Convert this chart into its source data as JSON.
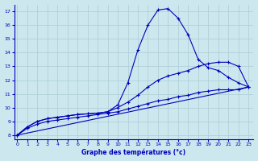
{
  "xlabel": "Graphe des températures (°c)",
  "bg_color": "#cce8ee",
  "grid_color": "#b0d0d8",
  "line_color": "#0000bb",
  "x_ticks": [
    0,
    1,
    2,
    3,
    4,
    5,
    6,
    7,
    8,
    9,
    10,
    11,
    12,
    13,
    14,
    15,
    16,
    17,
    18,
    19,
    20,
    21,
    22,
    23
  ],
  "y_ticks": [
    8,
    9,
    10,
    11,
    12,
    13,
    14,
    15,
    16,
    17
  ],
  "ylim": [
    7.7,
    17.5
  ],
  "xlim": [
    -0.3,
    23.5
  ],
  "line1_x": [
    0,
    1,
    2,
    3,
    4,
    5,
    6,
    7,
    8,
    9,
    10,
    11,
    12,
    13,
    14,
    15,
    16,
    17,
    18,
    19,
    20,
    21,
    22,
    23
  ],
  "line1_y": [
    8.0,
    8.6,
    9.0,
    9.2,
    9.3,
    9.4,
    9.5,
    9.55,
    9.6,
    9.7,
    10.2,
    11.8,
    14.2,
    16.0,
    17.1,
    17.2,
    16.5,
    15.3,
    13.5,
    12.9,
    12.7,
    12.2,
    11.8,
    11.5
  ],
  "line2_x": [
    0,
    1,
    2,
    3,
    4,
    5,
    6,
    7,
    8,
    9,
    10,
    11,
    12,
    13,
    14,
    15,
    16,
    17,
    18,
    19,
    20,
    21,
    22,
    23
  ],
  "line2_y": [
    8.0,
    8.6,
    9.0,
    9.2,
    9.3,
    9.4,
    9.5,
    9.55,
    9.6,
    9.7,
    10.0,
    10.4,
    10.9,
    11.5,
    12.0,
    12.3,
    12.5,
    12.7,
    13.0,
    13.2,
    13.3,
    13.3,
    13.0,
    11.5
  ],
  "line3_x": [
    0,
    1,
    2,
    3,
    4,
    5,
    6,
    7,
    8,
    9,
    10,
    11,
    12,
    13,
    14,
    15,
    16,
    17,
    18,
    19,
    20,
    21,
    22,
    23
  ],
  "line3_y": [
    8.0,
    8.5,
    8.8,
    9.0,
    9.1,
    9.2,
    9.3,
    9.4,
    9.5,
    9.6,
    9.7,
    9.9,
    10.1,
    10.3,
    10.5,
    10.6,
    10.8,
    10.9,
    11.1,
    11.2,
    11.3,
    11.3,
    11.3,
    11.5
  ],
  "line4_x": [
    0,
    23
  ],
  "line4_y": [
    8.0,
    11.5
  ]
}
